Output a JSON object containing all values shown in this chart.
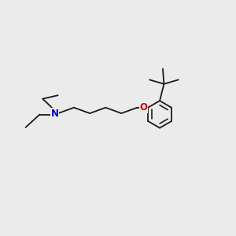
{
  "background_color": "#ebebeb",
  "line_color": "#1a1a1a",
  "N_color": "#0000cc",
  "O_color": "#cc0000",
  "figsize": [
    3.0,
    3.0
  ],
  "dpi": 100,
  "lw": 1.3,
  "fontsize": 8.5
}
